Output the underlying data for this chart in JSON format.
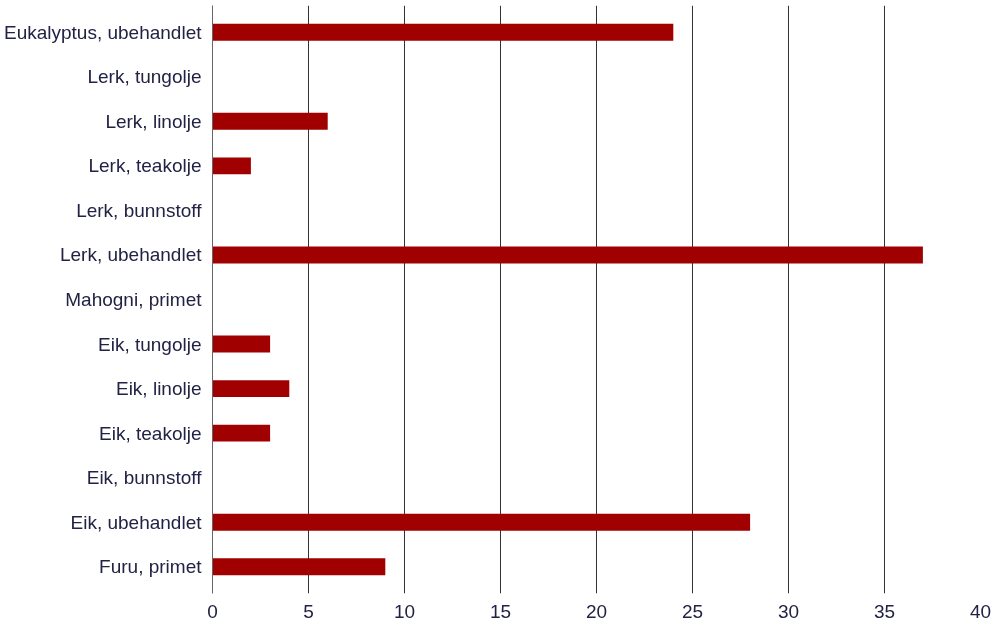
{
  "chart_data": {
    "type": "bar",
    "orientation": "horizontal",
    "categories": [
      "Eukalyptus, ubehandlet",
      "Lerk, tungolje",
      "Lerk, linolje",
      "Lerk, teakolje",
      "Lerk, bunnstoff",
      "Lerk, ubehandlet",
      "Mahogni, primet",
      "Eik, tungolje",
      "Eik, linolje",
      "Eik, teakolje",
      "Eik, bunnstoff",
      "Eik, ubehandlet",
      "Furu, primet"
    ],
    "values": [
      24,
      0,
      6,
      2,
      0,
      37,
      0,
      3,
      4,
      3,
      0,
      28,
      9
    ],
    "color": "#a00000",
    "xlim": [
      0,
      40
    ],
    "xticks": [
      0,
      5,
      10,
      15,
      20,
      25,
      30,
      35,
      40
    ],
    "grid": "x"
  }
}
